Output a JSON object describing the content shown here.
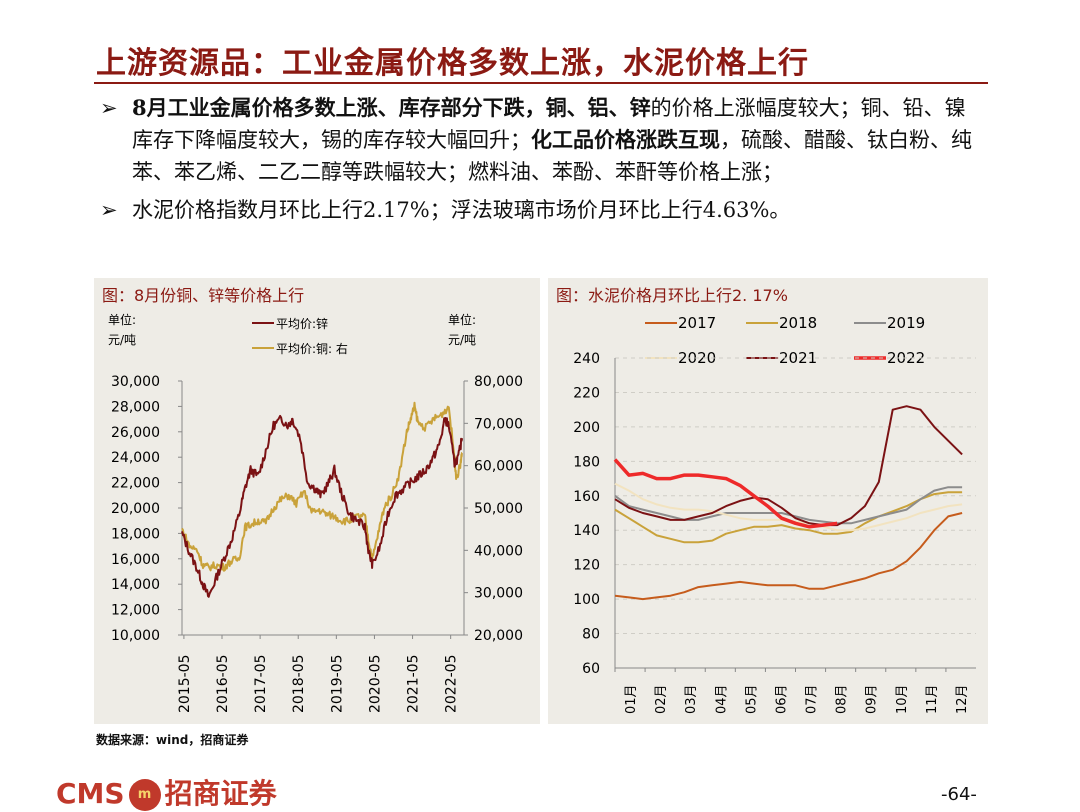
{
  "title": "上游资源品：工业金属价格多数上涨，水泥价格上行",
  "bullets": [
    {
      "arrow": "➢",
      "parts": [
        {
          "t": "8月工业金属价格多数上涨、库存部分下跌，铜、铝、锌",
          "b": true
        },
        {
          "t": "的价格上涨幅度较大；铜、铅、镍库存下降幅度较大，锡的库存较大幅回升；",
          "b": false
        },
        {
          "t": "化工品价格涨跌互现",
          "b": true
        },
        {
          "t": "，硫酸、醋酸、钛白粉、纯苯、苯乙烯、二乙二醇等跌幅较大；燃料油、苯酚、苯酐等价格上涨；",
          "b": false
        }
      ]
    },
    {
      "arrow": "➢",
      "parts": [
        {
          "t": "水泥价格指数月环比上行2.17%；浮法玻璃市场价月环比上行4.63%。",
          "b": false
        }
      ]
    }
  ],
  "panels": [
    {
      "title": "图：8月份铜、锌等价格上行"
    },
    {
      "title": "图：水泥价格月环比上行2. 17%"
    }
  ],
  "chart_data": [
    {
      "type": "line",
      "title": "图：8月份铜、锌等价格上行",
      "left_unit": [
        "单位:",
        "元/吨"
      ],
      "right_unit": [
        "单位:",
        "元/吨"
      ],
      "ylim_left": [
        10000,
        30000
      ],
      "ylim_right": [
        20000,
        80000
      ],
      "yticks_left": [
        "30,000",
        "28,000",
        "26,000",
        "24,000",
        "22,000",
        "20,000",
        "18,000",
        "16,000",
        "14,000",
        "12,000",
        "10,000"
      ],
      "yticks_right": [
        "80,000",
        "70,000",
        "60,000",
        "50,000",
        "40,000",
        "30,000",
        "20,000"
      ],
      "xticks": [
        "2015-05",
        "2016-05",
        "2017-05",
        "2018-05",
        "2019-05",
        "2020-05",
        "2021-05",
        "2022-05"
      ],
      "x_range": [
        2015.3,
        2022.7
      ],
      "series": [
        {
          "name": "平均价:锌",
          "axis": "left",
          "color": "#7b1214",
          "points": [
            [
              2015.3,
              18000
            ],
            [
              2015.5,
              16500
            ],
            [
              2015.7,
              15200
            ],
            [
              2015.85,
              14000
            ],
            [
              2016.0,
              13000
            ],
            [
              2016.2,
              14500
            ],
            [
              2016.4,
              16000
            ],
            [
              2016.6,
              17500
            ],
            [
              2016.8,
              19500
            ],
            [
              2016.95,
              21500
            ],
            [
              2017.1,
              23000
            ],
            [
              2017.3,
              22500
            ],
            [
              2017.5,
              24500
            ],
            [
              2017.7,
              26500
            ],
            [
              2017.9,
              27000
            ],
            [
              2018.1,
              26500
            ],
            [
              2018.2,
              27000
            ],
            [
              2018.4,
              25500
            ],
            [
              2018.6,
              22000
            ],
            [
              2018.8,
              21500
            ],
            [
              2018.95,
              21000
            ],
            [
              2019.15,
              22000
            ],
            [
              2019.3,
              23000
            ],
            [
              2019.5,
              21000
            ],
            [
              2019.7,
              19500
            ],
            [
              2019.9,
              19000
            ],
            [
              2020.1,
              18500
            ],
            [
              2020.2,
              16500
            ],
            [
              2020.3,
              15500
            ],
            [
              2020.5,
              17000
            ],
            [
              2020.7,
              19500
            ],
            [
              2020.9,
              21000
            ],
            [
              2021.1,
              21500
            ],
            [
              2021.3,
              22000
            ],
            [
              2021.5,
              22500
            ],
            [
              2021.7,
              23000
            ],
            [
              2021.9,
              24000
            ],
            [
              2022.05,
              25000
            ],
            [
              2022.2,
              27000
            ],
            [
              2022.3,
              26500
            ],
            [
              2022.45,
              23500
            ],
            [
              2022.55,
              24000
            ],
            [
              2022.65,
              25500
            ]
          ]
        },
        {
          "name": "平均价:铜: 右",
          "axis": "right",
          "color": "#c9a23a",
          "points": [
            [
              2015.3,
              45000
            ],
            [
              2015.5,
              41000
            ],
            [
              2015.7,
              40000
            ],
            [
              2015.85,
              36500
            ],
            [
              2016.0,
              36000
            ],
            [
              2016.2,
              36500
            ],
            [
              2016.4,
              36000
            ],
            [
              2016.6,
              37500
            ],
            [
              2016.8,
              38000
            ],
            [
              2016.95,
              45500
            ],
            [
              2017.1,
              46000
            ],
            [
              2017.3,
              47000
            ],
            [
              2017.5,
              46500
            ],
            [
              2017.7,
              50000
            ],
            [
              2017.9,
              52000
            ],
            [
              2018.1,
              53000
            ],
            [
              2018.3,
              51000
            ],
            [
              2018.5,
              54000
            ],
            [
              2018.7,
              49000
            ],
            [
              2018.9,
              49500
            ],
            [
              2019.1,
              48500
            ],
            [
              2019.3,
              48000
            ],
            [
              2019.5,
              47000
            ],
            [
              2019.7,
              47000
            ],
            [
              2019.9,
              48000
            ],
            [
              2020.1,
              48000
            ],
            [
              2020.2,
              42000
            ],
            [
              2020.3,
              38000
            ],
            [
              2020.45,
              44000
            ],
            [
              2020.6,
              50000
            ],
            [
              2020.8,
              53000
            ],
            [
              2021.0,
              58000
            ],
            [
              2021.2,
              68000
            ],
            [
              2021.3,
              71000
            ],
            [
              2021.4,
              74000
            ],
            [
              2021.5,
              70000
            ],
            [
              2021.7,
              69000
            ],
            [
              2021.9,
              71000
            ],
            [
              2022.1,
              72000
            ],
            [
              2022.3,
              74000
            ],
            [
              2022.45,
              62000
            ],
            [
              2022.5,
              57000
            ],
            [
              2022.6,
              60000
            ],
            [
              2022.65,
              63000
            ]
          ]
        }
      ]
    },
    {
      "type": "line",
      "title": "图：水泥价格月环比上行2. 17%",
      "ylim": [
        60,
        240
      ],
      "yticks": [
        "240",
        "220",
        "200",
        "180",
        "160",
        "140",
        "120",
        "100",
        "80",
        "60"
      ],
      "xticks": [
        "01月",
        "02月",
        "03月",
        "04月",
        "05月",
        "06月",
        "07月",
        "08月",
        "09月",
        "10月",
        "11月",
        "12月"
      ],
      "x_range": [
        0,
        12
      ],
      "series": [
        {
          "name": "2017",
          "color": "#c65c1c",
          "width": 2,
          "values": [
            102,
            101,
            100,
            101,
            102,
            104,
            107,
            108,
            109,
            110,
            109,
            108,
            108,
            108,
            106,
            106,
            108,
            110,
            112,
            115,
            117,
            122,
            130,
            140,
            148,
            150
          ]
        },
        {
          "name": "2018",
          "color": "#c9a23a",
          "width": 2,
          "values": [
            152,
            147,
            142,
            137,
            135,
            133,
            133,
            134,
            138,
            140,
            142,
            142,
            143,
            141,
            140,
            138,
            138,
            139,
            144,
            148,
            151,
            154,
            158,
            161,
            162,
            162
          ]
        },
        {
          "name": "2019",
          "color": "#8c8c8c",
          "width": 2,
          "values": [
            160,
            154,
            152,
            150,
            148,
            146,
            146,
            148,
            150,
            150,
            150,
            150,
            150,
            148,
            146,
            145,
            144,
            144,
            146,
            148,
            150,
            152,
            158,
            163,
            165,
            165
          ]
        },
        {
          "name": "2020",
          "color": "#f2e3c0",
          "width": 2,
          "values": [
            167,
            163,
            158,
            155,
            153,
            152,
            152,
            151,
            149,
            147,
            146,
            146,
            146,
            145,
            144,
            142,
            140,
            140,
            141,
            143,
            145,
            147,
            150,
            152,
            154,
            155
          ]
        },
        {
          "name": "2021",
          "color": "#7b1214",
          "width": 2,
          "values": [
            158,
            153,
            150,
            148,
            146,
            146,
            148,
            150,
            154,
            157,
            159,
            158,
            153,
            147,
            144,
            143,
            143,
            147,
            154,
            168,
            210,
            212,
            210,
            200,
            192,
            184
          ]
        },
        {
          "name": "2022",
          "color": "#ee2a2a",
          "width": 3.5,
          "values": [
            181,
            172,
            173,
            170,
            170,
            172,
            172,
            171,
            170,
            166,
            160,
            154,
            147,
            144,
            142,
            143,
            144
          ]
        }
      ],
      "legend": [
        "2017",
        "2018",
        "2019",
        "2020",
        "2021",
        "2022"
      ]
    }
  ],
  "source": "数据来源：wind，招商证券",
  "footer": {
    "brand_latin": "CMS",
    "logo_mark": "m",
    "brand_cn": "招商证券",
    "page": "-64-"
  }
}
